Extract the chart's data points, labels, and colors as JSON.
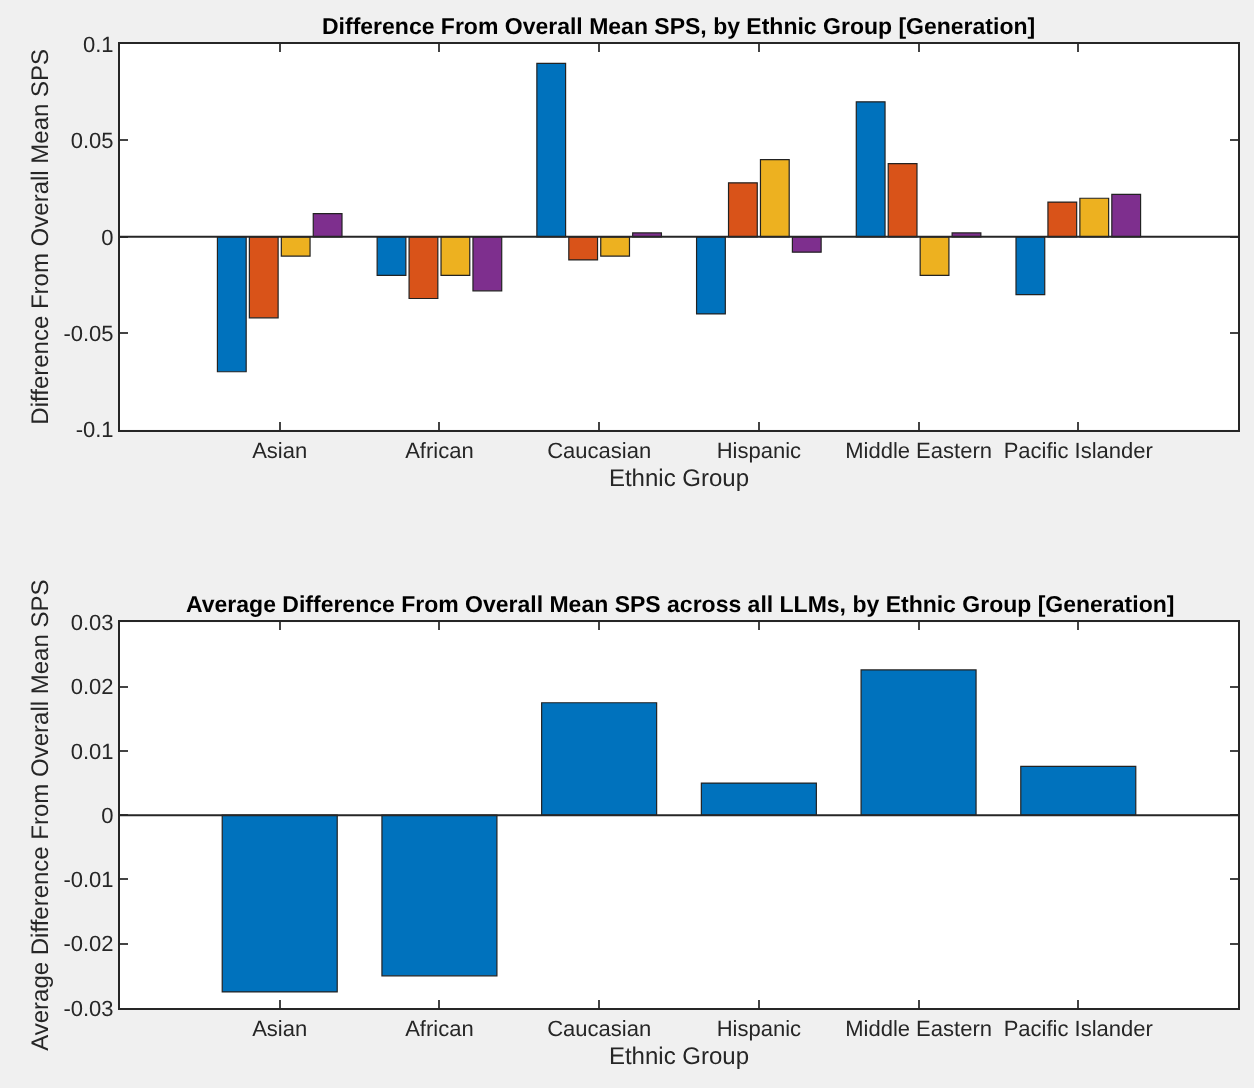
{
  "chart_data": [
    {
      "type": "bar",
      "title": "Difference From Overall Mean SPS, by Ethnic Group [Generation]",
      "xlabel": "Ethnic Group",
      "ylabel": "Difference From Overall Mean SPS",
      "categories": [
        "Asian",
        "African",
        "Caucasian",
        "Hispanic",
        "Middle Eastern",
        "Pacific Islander"
      ],
      "series": [
        {
          "color": "#0072bd",
          "values": [
            -0.07,
            -0.02,
            0.09,
            -0.04,
            0.07,
            -0.03
          ]
        },
        {
          "color": "#d95319",
          "values": [
            -0.042,
            -0.032,
            -0.012,
            0.028,
            0.038,
            0.018
          ]
        },
        {
          "color": "#edb120",
          "values": [
            -0.01,
            -0.02,
            -0.01,
            0.04,
            -0.02,
            0.02
          ]
        },
        {
          "color": "#7e2f8e",
          "values": [
            0.012,
            -0.028,
            0.002,
            -0.008,
            0.002,
            0.022
          ]
        }
      ],
      "ylim": [
        -0.1,
        0.1
      ],
      "yticks": [
        -0.1,
        -0.05,
        0,
        0.05,
        0.1
      ],
      "ref_lines": [
        {
          "axis": "y",
          "value": 0,
          "color": "#262626"
        }
      ]
    },
    {
      "type": "bar",
      "title": "Average Difference From Overall Mean SPS across all LLMs, by Ethnic Group [Generation]",
      "xlabel": "Ethnic Group",
      "ylabel": "Average Difference From Overall Mean SPS",
      "categories": [
        "Asian",
        "African",
        "Caucasian",
        "Hispanic",
        "Middle Eastern",
        "Pacific Islander"
      ],
      "values": [
        -0.0275,
        -0.025,
        0.0175,
        0.005,
        0.0226,
        0.0076
      ],
      "color": "#0072bd",
      "ylim": [
        -0.03,
        0.03
      ],
      "yticks": [
        -0.03,
        -0.02,
        -0.01,
        0,
        0.01,
        0.02,
        0.03
      ],
      "ref_lines": [
        {
          "axis": "y",
          "value": 0,
          "color": "#262626"
        }
      ]
    }
  ]
}
